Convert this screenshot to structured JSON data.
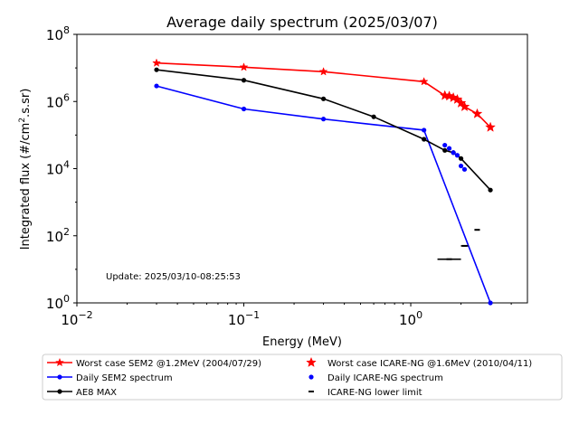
{
  "chart_data": {
    "type": "line",
    "title": "Average daily spectrum (2025/03/07)",
    "xlabel": "Energy (MeV)",
    "ylabel": "Integrated flux (#/cm2.s.sr)",
    "xscale": "log",
    "yscale": "log",
    "xlim": [
      0.01,
      5
    ],
    "ylim": [
      1,
      100000000
    ],
    "x_ticks": [
      {
        "value": 0.01,
        "base": "10",
        "exp": "−2"
      },
      {
        "value": 0.1,
        "base": "10",
        "exp": "−1"
      },
      {
        "value": 1,
        "base": "10",
        "exp": "0"
      }
    ],
    "y_ticks": [
      {
        "value": 1,
        "base": "10",
        "exp": "0"
      },
      {
        "value": 100,
        "base": "10",
        "exp": "2"
      },
      {
        "value": 10000,
        "base": "10",
        "exp": "4"
      },
      {
        "value": 1000000,
        "base": "10",
        "exp": "6"
      },
      {
        "value": 100000000,
        "base": "10",
        "exp": "8"
      }
    ],
    "annotation": "Update: 2025/03/10-08:25:53",
    "legend_placement": "below plot, two columns",
    "series": [
      {
        "name": "Worst case SEM2 @1.2MeV (2004/07/29)",
        "color": "#ff0000",
        "style": "line",
        "marker": "star",
        "points": [
          [
            0.03,
            14000000
          ],
          [
            0.1,
            10500000
          ],
          [
            0.3,
            7700000
          ],
          [
            1.2,
            3900000
          ],
          [
            1.6,
            1500000
          ],
          [
            1.7,
            1450000
          ],
          [
            1.8,
            1300000
          ],
          [
            1.9,
            1150000
          ],
          [
            2.0,
            900000
          ],
          [
            2.1,
            700000
          ],
          [
            2.5,
            430000
          ],
          [
            3.0,
            170000
          ]
        ]
      },
      {
        "name": "Daily SEM2 spectrum",
        "color": "#0000ff",
        "style": "line",
        "marker": "dot",
        "points": [
          [
            0.03,
            2900000
          ],
          [
            0.1,
            600000
          ],
          [
            0.3,
            300000
          ],
          [
            1.2,
            140000
          ],
          [
            3.0,
            1
          ]
        ]
      },
      {
        "name": "AE8 MAX",
        "color": "#000000",
        "style": "line",
        "marker": "dot",
        "points": [
          [
            0.03,
            8800000
          ],
          [
            0.1,
            4300000
          ],
          [
            0.3,
            1200000
          ],
          [
            0.6,
            350000
          ],
          [
            1.2,
            75000
          ],
          [
            1.6,
            35000
          ],
          [
            1.8,
            30000
          ],
          [
            2.0,
            20000
          ],
          [
            3.0,
            2300
          ]
        ]
      },
      {
        "name": "Worst case ICARE-NG @1.6MeV (2010/04/11)",
        "color": "#ff0000",
        "style": "markers",
        "marker": "star",
        "points": [
          [
            1.6,
            1500000
          ],
          [
            1.7,
            1450000
          ],
          [
            1.8,
            1300000
          ],
          [
            1.9,
            1150000
          ],
          [
            2.0,
            900000
          ],
          [
            2.1,
            700000
          ],
          [
            2.5,
            430000
          ],
          [
            3.0,
            170000
          ]
        ]
      },
      {
        "name": "Daily ICARE-NG spectrum",
        "color": "#0000ff",
        "style": "markers",
        "marker": "dot",
        "points": [
          [
            1.6,
            50000
          ],
          [
            1.7,
            40000
          ],
          [
            1.8,
            30000
          ],
          [
            1.9,
            25000
          ],
          [
            2.0,
            12000
          ],
          [
            2.1,
            9500
          ]
        ]
      },
      {
        "name": "ICARE-NG lower limit",
        "color": "#000000",
        "style": "markers",
        "marker": "dash",
        "points": [
          [
            1.7,
            20
          ],
          [
            2.1,
            50
          ],
          [
            2.5,
            150
          ]
        ]
      }
    ]
  }
}
